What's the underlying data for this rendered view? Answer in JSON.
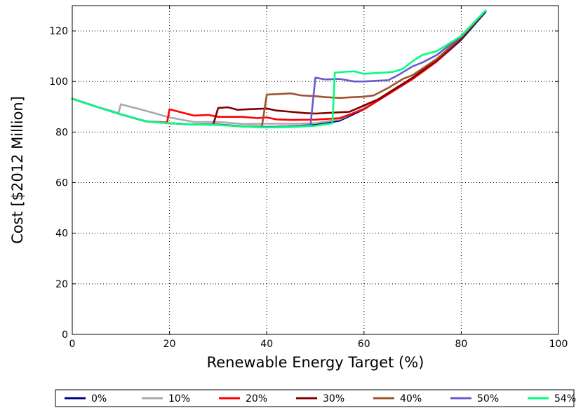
{
  "chart_data": {
    "type": "line",
    "title": "",
    "xlabel": "Renewable Energy Target (%)",
    "ylabel": "Cost [$2012 Million]",
    "xlim": [
      0,
      100
    ],
    "ylim": [
      0,
      130
    ],
    "xticks": [
      0,
      20,
      40,
      60,
      80,
      100
    ],
    "yticks": [
      0,
      20,
      40,
      60,
      80,
      100,
      120
    ],
    "grid": true,
    "legend_position": "bottom",
    "series": [
      {
        "name": "0%",
        "color": "#000080",
        "x": [
          0,
          5,
          10,
          15,
          20,
          25,
          30,
          35,
          40,
          45,
          50,
          55,
          60,
          65,
          70,
          75,
          80,
          85
        ],
        "y": [
          93.2,
          90,
          87,
          84.3,
          83.5,
          83,
          83,
          82.2,
          82,
          82.3,
          82.8,
          84.5,
          89,
          95,
          101,
          108,
          116.5,
          127.5
        ]
      },
      {
        "name": "10%",
        "color": "#aaaaaa",
        "x": [
          0,
          5,
          9.5,
          10,
          15,
          20,
          25,
          30,
          35,
          40,
          45,
          50,
          55,
          60,
          65,
          70,
          75,
          80,
          85
        ],
        "y": [
          93.2,
          90,
          87.5,
          91,
          88.5,
          85.8,
          84,
          84,
          83.2,
          83.3,
          83.3,
          83.5,
          85,
          89.5,
          95.5,
          101.5,
          108.5,
          117,
          128
        ]
      },
      {
        "name": "20%",
        "color": "#ff0000",
        "x": [
          0,
          5,
          10,
          15,
          19.5,
          20,
          22,
          25,
          28,
          30,
          35,
          38,
          40,
          42,
          45,
          50,
          55,
          60,
          65,
          70,
          75,
          80,
          85
        ],
        "y": [
          93.2,
          90,
          87,
          84.3,
          83.8,
          89,
          88,
          86.5,
          86.8,
          86,
          86,
          85.5,
          85.8,
          85,
          84.8,
          84.9,
          85.5,
          89,
          95,
          101,
          108,
          117,
          128
        ]
      },
      {
        "name": "30%",
        "color": "#800000",
        "x": [
          0,
          5,
          10,
          15,
          20,
          25,
          29,
          30,
          32,
          34,
          36,
          40,
          42,
          45,
          48,
          50,
          55,
          57,
          60,
          63,
          65,
          70,
          75,
          80,
          85
        ],
        "y": [
          93.2,
          90,
          87,
          84.3,
          83.5,
          83,
          83,
          89.5,
          89.8,
          88.8,
          89,
          89.3,
          88.5,
          88,
          87.5,
          87.3,
          87.8,
          88,
          90.5,
          93,
          95.5,
          101.5,
          108.5,
          117,
          128
        ]
      },
      {
        "name": "40%",
        "color": "#a0522d",
        "x": [
          0,
          5,
          10,
          15,
          20,
          25,
          30,
          35,
          39,
          40,
          42,
          45,
          47,
          50,
          52,
          55,
          58,
          60,
          62,
          65,
          68,
          70,
          75,
          80,
          85
        ],
        "y": [
          93.2,
          90,
          87,
          84.3,
          83.5,
          83,
          83,
          82.3,
          82.2,
          94.8,
          95,
          95.3,
          94.5,
          94.2,
          93.8,
          93.5,
          93.8,
          94,
          94.5,
          97.5,
          101,
          102.5,
          109,
          117.5,
          128
        ]
      },
      {
        "name": "50%",
        "color": "#6a5acd",
        "x": [
          0,
          5,
          10,
          15,
          20,
          25,
          30,
          35,
          40,
          45,
          49,
          50,
          52,
          55,
          58,
          60,
          63,
          65,
          67,
          70,
          72,
          75,
          80,
          85
        ],
        "y": [
          93.2,
          90,
          87,
          84.3,
          83.5,
          83,
          83,
          82.2,
          82,
          82.3,
          82.8,
          101.5,
          100.8,
          101,
          100,
          100,
          100.3,
          100.5,
          102.5,
          106,
          107.5,
          110.5,
          118,
          128
        ]
      },
      {
        "name": "54%",
        "color": "#00ff7f",
        "x": [
          0,
          5,
          10,
          15,
          20,
          25,
          30,
          35,
          40,
          45,
          50,
          53.5,
          54,
          56,
          58,
          60,
          62,
          64,
          66,
          68,
          70,
          72,
          75,
          80,
          85
        ],
        "y": [
          93.2,
          90,
          87,
          84.3,
          83.5,
          83,
          82.8,
          82.2,
          81.8,
          82,
          82.5,
          83.5,
          103.5,
          103.8,
          104,
          103,
          103.3,
          103.5,
          103.8,
          105,
          108,
          110.5,
          112,
          118,
          128
        ]
      }
    ]
  }
}
